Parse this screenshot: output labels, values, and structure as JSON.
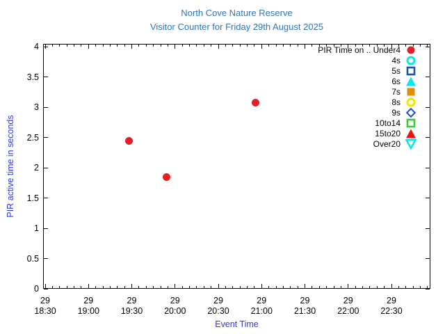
{
  "colors": {
    "title_blue": "#2e75b6",
    "axis_label_blue": "#3535e8",
    "tick_text_black": "#000000",
    "point_red": "#dd2127"
  },
  "chart_data": {
    "type": "scatter",
    "title": "North Cove Nature Reserve",
    "subtitle": "Visitor Counter for Friday 29th August 2025",
    "xlabel": "Event Time",
    "ylabel": "PIR active time in seconds",
    "ylim": [
      0,
      4
    ],
    "y_tick_labels": [
      "0",
      "0.5",
      "1",
      "1.5",
      "2",
      "2.5",
      "3",
      "3.5",
      "4"
    ],
    "x_axis": {
      "date_line": "29",
      "start": "18:30",
      "end": "22:57",
      "major_interval_minutes": 30,
      "minor_interval_minutes": 5
    },
    "x_ticks": [
      {
        "date": "29",
        "time": "18:30"
      },
      {
        "date": "29",
        "time": "19:00"
      },
      {
        "date": "29",
        "time": "19:30"
      },
      {
        "date": "29",
        "time": "20:00"
      },
      {
        "date": "29",
        "time": "20:30"
      },
      {
        "date": "29",
        "time": "21:00"
      },
      {
        "date": "29",
        "time": "21:30"
      },
      {
        "date": "29",
        "time": "22:00"
      },
      {
        "date": "29",
        "time": "22:30"
      }
    ],
    "grid": false,
    "legend_position": "top-right-inside",
    "legend": [
      {
        "label": "PIR Time on .. Under4",
        "marker": "circle-filled",
        "color": "#dd2127"
      },
      {
        "label": "4s",
        "marker": "circle-open",
        "color": "#00e8e8"
      },
      {
        "label": "5s",
        "marker": "square-open",
        "color": "#1a52a8"
      },
      {
        "label": "6s",
        "marker": "triangle-up-filled",
        "color": "#00e8e8"
      },
      {
        "label": "7s",
        "marker": "square-filled",
        "color": "#dd9100"
      },
      {
        "label": "8s",
        "marker": "circle-open",
        "color": "#f0e800"
      },
      {
        "label": "9s",
        "marker": "diamond-open",
        "color": "#2050c8"
      },
      {
        "label": "10to14",
        "marker": "square-open",
        "color": "#33cc33"
      },
      {
        "label": "15to20",
        "marker": "triangle-up-filled",
        "color": "#ee1111"
      },
      {
        "label": "Over20",
        "marker": "triangle-down-open",
        "color": "#00e8e8"
      }
    ],
    "series": [
      {
        "name": "Under4",
        "legend_label": "PIR Time on .. Under4",
        "marker": "circle-filled",
        "color": "#dd2127",
        "points": [
          {
            "time": "19:28",
            "value": 2.44
          },
          {
            "time": "19:54",
            "value": 1.85
          },
          {
            "time": "20:56",
            "value": 3.08
          }
        ]
      }
    ]
  }
}
